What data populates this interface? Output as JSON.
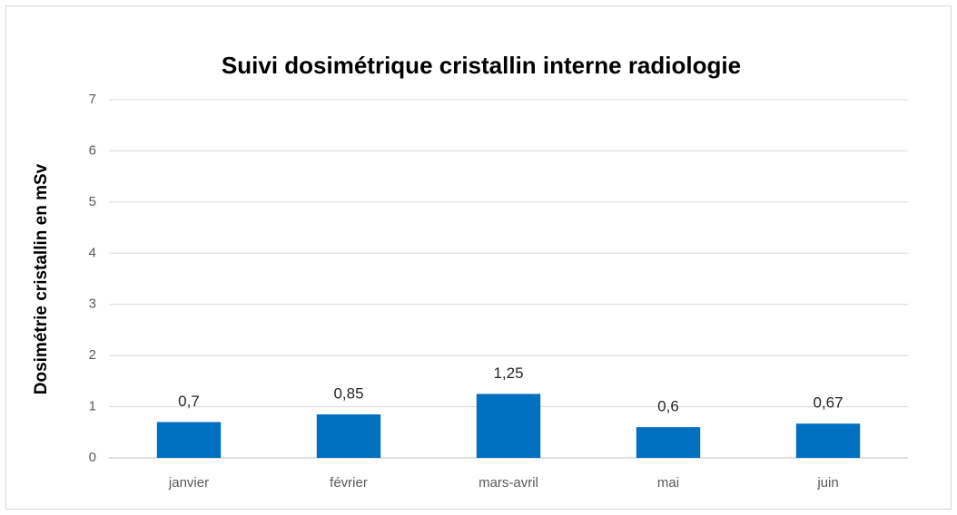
{
  "chart_data": {
    "type": "bar",
    "title": "Suivi dosimétrique cristallin interne radiologie",
    "y_label": "Dosimétrie cristallin en mSv",
    "categories": [
      "janvier",
      "février",
      "mars-avril",
      "mai",
      "juin"
    ],
    "values": [
      0.7,
      0.85,
      1.25,
      0.6,
      0.67
    ],
    "value_labels": [
      "0,7",
      "0,85",
      "1,25",
      "0,6",
      "0,67"
    ],
    "color": "#0070c0",
    "ylim": [
      0,
      7
    ],
    "yticks": [
      0,
      1,
      2,
      3,
      4,
      5,
      6,
      7
    ],
    "grid": true
  }
}
